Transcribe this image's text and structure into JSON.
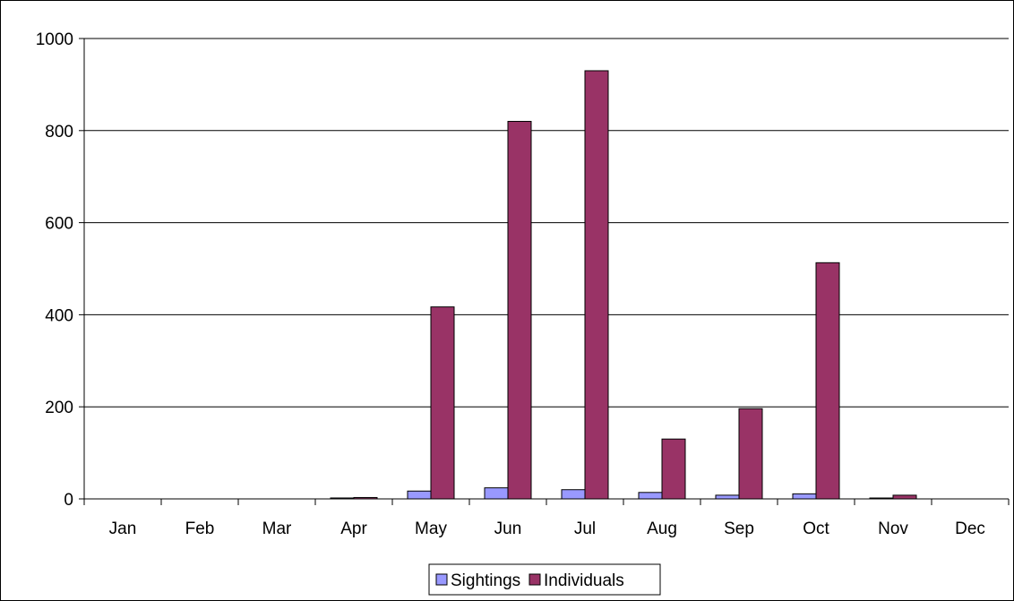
{
  "chart_data": {
    "type": "bar",
    "categories": [
      "Jan",
      "Feb",
      "Mar",
      "Apr",
      "May",
      "Jun",
      "Jul",
      "Aug",
      "Sep",
      "Oct",
      "Nov",
      "Dec"
    ],
    "series": [
      {
        "name": "Sightings",
        "color": "#9999ff",
        "values": [
          0,
          0,
          0,
          2,
          17,
          24,
          20,
          14,
          8,
          11,
          1,
          0
        ]
      },
      {
        "name": "Individuals",
        "color": "#993366",
        "values": [
          0,
          0,
          0,
          3,
          417,
          820,
          930,
          130,
          196,
          513,
          8,
          0
        ]
      }
    ],
    "title": "",
    "xlabel": "",
    "ylabel": "",
    "ylim": [
      0,
      1000
    ],
    "yticks": [
      0,
      200,
      400,
      600,
      800,
      1000
    ],
    "grid": true,
    "legend_position": "bottom"
  }
}
